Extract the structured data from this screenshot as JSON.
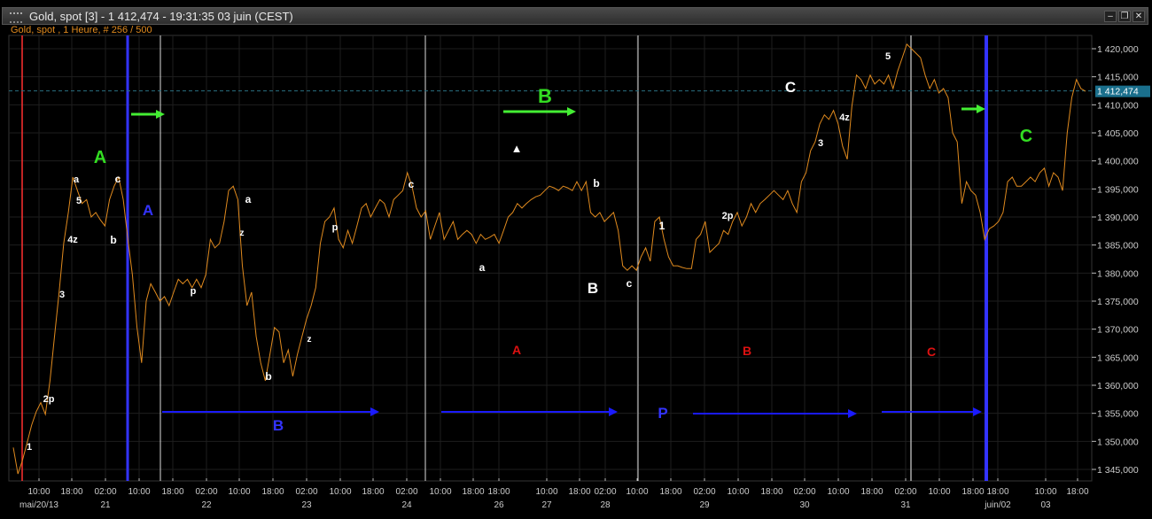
{
  "window": {
    "title": "Gold, spot [3] - 1 412,474 - 19:31:35  03 juin (CEST)",
    "subtitle": "Gold, spot , 1 Heure, # 256 / 500",
    "buttons": {
      "minimize": "–",
      "restore": "❐",
      "close": "✕"
    }
  },
  "chart_data": {
    "type": "line",
    "instrument": "Gold, spot",
    "timeframe": "1 Heure",
    "line_color": "#e08a1e",
    "ylim": [
      1345,
      1420
    ],
    "last_price": 1412.474,
    "last_price_label": "1 412,474",
    "last_price_color": "#1a6f8c",
    "y_ticks": [
      "1 420,000",
      "1 415,000",
      "1 410,000",
      "1 405,000",
      "1 400,000",
      "1 395,000",
      "1 390,000",
      "1 385,000",
      "1 380,000",
      "1 375,000",
      "1 370,000",
      "1 365,000",
      "1 360,000",
      "1 355,000",
      "1 350,000",
      "1 345,000"
    ],
    "y_tick_values": [
      1420,
      1415,
      1410,
      1405,
      1400,
      1395,
      1390,
      1385,
      1380,
      1375,
      1370,
      1365,
      1360,
      1355,
      1350,
      1345
    ],
    "x_time_ticks": [
      "10:00",
      "18:00",
      "02:00",
      "10:00",
      "18:00",
      "02:00",
      "10:00",
      "18:00",
      "02:00",
      "10:00",
      "18:00",
      "02:00",
      "10:00",
      "18:00",
      "18:00",
      "10:00",
      "18:00",
      "02:00",
      "10:00",
      "18:00",
      "02:00",
      "10:00",
      "18:00",
      "02:00",
      "10:00",
      "18:00",
      "02:00",
      "10:00",
      "18:00",
      "18:00",
      "10:00",
      "18:00"
    ],
    "x_date_ticks": [
      "mai/20/13",
      "21",
      "22",
      "23",
      "24",
      "26",
      "27",
      "28",
      "29",
      "30",
      "31",
      "juin/02",
      "03"
    ],
    "grid": true,
    "values": [
      1348.9,
      1344.2,
      1346.6,
      1349.7,
      1352.9,
      1355.3,
      1356.9,
      1354.8,
      1360.8,
      1368.7,
      1376.6,
      1385.3,
      1390.8,
      1397.1,
      1394.7,
      1392.4,
      1393.1,
      1390.0,
      1390.8,
      1389.5,
      1388.4,
      1393.1,
      1395.5,
      1397.1,
      1393.1,
      1386.0,
      1379.7,
      1370.3,
      1364.0,
      1375.0,
      1378.1,
      1376.6,
      1375.0,
      1375.8,
      1374.2,
      1376.6,
      1378.9,
      1378.1,
      1378.9,
      1377.4,
      1378.9,
      1377.4,
      1379.7,
      1386.0,
      1384.5,
      1385.3,
      1389.2,
      1394.7,
      1395.5,
      1393.1,
      1381.3,
      1374.2,
      1376.6,
      1368.7,
      1364.0,
      1360.8,
      1365.5,
      1370.3,
      1369.5,
      1364.0,
      1366.3,
      1361.6,
      1365.5,
      1368.7,
      1371.8,
      1374.2,
      1377.4,
      1385.3,
      1389.2,
      1390.0,
      1391.6,
      1386.0,
      1384.5,
      1387.6,
      1385.3,
      1388.4,
      1391.6,
      1392.4,
      1390.0,
      1391.6,
      1393.1,
      1392.4,
      1390.0,
      1393.1,
      1393.9,
      1394.7,
      1397.9,
      1395.5,
      1391.6,
      1390.0,
      1391.1,
      1386.0,
      1388.4,
      1390.8,
      1386.0,
      1387.6,
      1389.2,
      1386.0,
      1386.9,
      1387.6,
      1386.9,
      1385.3,
      1386.9,
      1386.0,
      1386.4,
      1386.9,
      1385.3,
      1387.6,
      1390.0,
      1390.8,
      1392.4,
      1391.6,
      1392.4,
      1393.1,
      1393.6,
      1393.9,
      1394.7,
      1395.5,
      1395.2,
      1394.7,
      1395.5,
      1395.2,
      1394.7,
      1396.3,
      1394.7,
      1396.3,
      1390.8,
      1390.0,
      1390.8,
      1389.2,
      1390.0,
      1390.8,
      1387.6,
      1381.3,
      1380.5,
      1381.3,
      1380.5,
      1382.9,
      1384.5,
      1382.1,
      1389.2,
      1390.0,
      1386.0,
      1382.9,
      1381.3,
      1381.3,
      1381.0,
      1380.8,
      1380.8,
      1386.0,
      1386.9,
      1389.2,
      1383.7,
      1384.5,
      1385.3,
      1387.6,
      1386.9,
      1389.2,
      1390.8,
      1388.4,
      1390.0,
      1392.4,
      1390.8,
      1392.4,
      1393.1,
      1393.9,
      1394.7,
      1393.9,
      1393.1,
      1394.7,
      1392.4,
      1390.8,
      1396.3,
      1397.9,
      1401.8,
      1403.4,
      1406.6,
      1408.2,
      1407.4,
      1409.0,
      1406.6,
      1402.6,
      1400.3,
      1409.7,
      1415.3,
      1414.5,
      1412.9,
      1415.3,
      1413.7,
      1414.5,
      1413.7,
      1415.3,
      1412.9,
      1416.0,
      1418.4,
      1420.8,
      1420.0,
      1419.2,
      1418.4,
      1415.3,
      1412.9,
      1414.5,
      1412.1,
      1412.9,
      1411.3,
      1405.0,
      1403.4,
      1392.4,
      1396.3,
      1394.7,
      1393.9,
      1390.8,
      1386.0,
      1387.9,
      1388.4,
      1389.2,
      1390.8,
      1396.3,
      1397.1,
      1395.5,
      1395.5,
      1396.3,
      1397.1,
      1396.3,
      1397.9,
      1398.7,
      1395.5,
      1397.9,
      1397.1,
      1394.7,
      1405.0,
      1411.3,
      1414.5,
      1412.9,
      1412.4
    ],
    "annotations": [
      {
        "text": "1",
        "color": "#ffffff"
      },
      {
        "text": "2p",
        "color": "#ffffff"
      },
      {
        "text": "3",
        "color": "#ffffff"
      },
      {
        "text": "4z",
        "color": "#ffffff"
      },
      {
        "text": "5",
        "color": "#ffffff"
      },
      {
        "text": "a",
        "color": "#ffffff"
      },
      {
        "text": "c",
        "color": "#ffffff"
      },
      {
        "text": "b",
        "color": "#ffffff"
      },
      {
        "text": "p",
        "color": "#ffffff"
      },
      {
        "text": "a",
        "color": "#ffffff"
      },
      {
        "text": "z",
        "color": "#ffffff"
      },
      {
        "text": "b",
        "color": "#ffffff"
      },
      {
        "text": "z",
        "color": "#ffffff"
      },
      {
        "text": "p",
        "color": "#ffffff"
      },
      {
        "text": "c",
        "color": "#ffffff"
      },
      {
        "text": "a",
        "color": "#ffffff"
      },
      {
        "text": "c",
        "color": "#ffffff"
      },
      {
        "text": "b",
        "color": "#ffffff"
      },
      {
        "text": "1",
        "color": "#ffffff"
      },
      {
        "text": "2p",
        "color": "#ffffff"
      },
      {
        "text": "3",
        "color": "#ffffff"
      },
      {
        "text": "4z",
        "color": "#ffffff"
      },
      {
        "text": "5",
        "color": "#ffffff"
      },
      {
        "text": "▲",
        "color": "#ffffff"
      },
      {
        "text": "A",
        "color": "#33dd22"
      },
      {
        "text": "B",
        "color": "#33dd22"
      },
      {
        "text": "C",
        "color": "#33dd22"
      },
      {
        "text": "B",
        "color": "#ffffff"
      },
      {
        "text": "C",
        "color": "#ffffff"
      },
      {
        "text": "A",
        "color": "#3333ff"
      },
      {
        "text": "B",
        "color": "#3333ff"
      },
      {
        "text": "P",
        "color": "#3333ff"
      },
      {
        "text": "A",
        "color": "#dd1111"
      },
      {
        "text": "B",
        "color": "#dd1111"
      },
      {
        "text": "C",
        "color": "#dd1111"
      }
    ],
    "arrow_colors": {
      "green": "#44ee33",
      "blue": "#1a1aff"
    },
    "vertical_line_colors": [
      "#ff3030",
      "#3333ff",
      "#dddddd",
      "#dddddd",
      "#dddddd",
      "#aaaaaa",
      "#3333ff"
    ]
  }
}
